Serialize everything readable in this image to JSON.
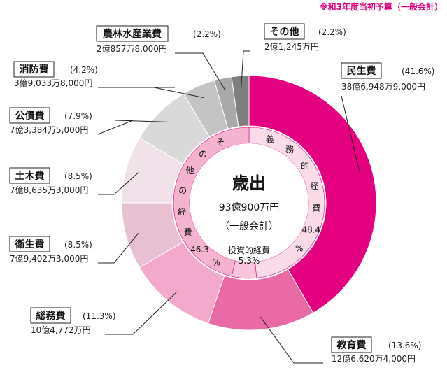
{
  "header": {
    "note": "令和3年度当初予算（一般会計）"
  },
  "colors": {
    "accent": "#e4007f",
    "note": "#e4007f"
  },
  "chart_data": {
    "type": "pie",
    "center": {
      "title": "歳出",
      "total": "93億900万円",
      "sub": "（一般会計）"
    },
    "series": [
      {
        "name": "民生費",
        "percent_label": "(41.6%)",
        "amount": "38億6,948万9,000円",
        "value": 41.6,
        "color": "#e4007f"
      },
      {
        "name": "教育費",
        "percent_label": "(13.6%)",
        "amount": "12億6,620万4,000円",
        "value": 13.6,
        "color": "#ea6aa5"
      },
      {
        "name": "総務費",
        "percent_label": "(11.3%)",
        "amount": "10億4,772万円",
        "value": 11.3,
        "color": "#f2a9cb"
      },
      {
        "name": "衛生費",
        "percent_label": "(8.5%)",
        "amount": "7億9,402万3,000円",
        "value": 8.5,
        "color": "#e7c0d2"
      },
      {
        "name": "土木費",
        "percent_label": "(8.5%)",
        "amount": "7億8,635万3,000円",
        "value": 8.5,
        "color": "#f1e1e8"
      },
      {
        "name": "公債費",
        "percent_label": "(7.9%)",
        "amount": "7億3,384万5,000円",
        "value": 7.9,
        "color": "#d9d9d9"
      },
      {
        "name": "消防費",
        "percent_label": "(4.2%)",
        "amount": "3億9,033万8,000円",
        "value": 4.2,
        "color": "#c4c4c4"
      },
      {
        "name": "農林水産業費",
        "percent_label": "(2.2%)",
        "amount": "2億857万8,000円",
        "value": 2.2,
        "color": "#a9a9a9"
      },
      {
        "name": "その他",
        "percent_label": "(2.2%)",
        "amount": "2億1,245万円",
        "value": 2.2,
        "color": "#7f7f7f"
      }
    ],
    "inner_ring": [
      {
        "name": "義務的経費",
        "percent_text": "48.4%",
        "value": 48.4,
        "color": "#fadce9"
      },
      {
        "name": "投資的経費",
        "percent_text": "5.3%",
        "value": 5.3,
        "color": "#f7c6dc"
      },
      {
        "name": "その他の経費",
        "percent_text": "46.3%",
        "value": 46.3,
        "color": "#f4b4cf"
      }
    ]
  }
}
